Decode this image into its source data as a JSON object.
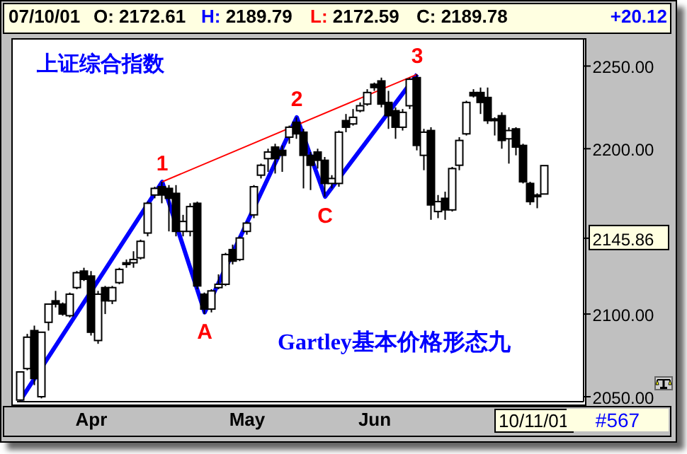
{
  "chart_data": {
    "type": "candlestick",
    "title": "上证综合指数",
    "categories": [
      null,
      null,
      null,
      null,
      null,
      null,
      null,
      null,
      null,
      null,
      "Apr",
      null,
      null,
      null,
      null,
      null,
      null,
      null,
      null,
      null,
      null,
      null,
      null,
      null,
      null,
      null,
      null,
      null,
      null,
      null,
      null,
      null,
      "May",
      null,
      null,
      null,
      null,
      null,
      null,
      null,
      null,
      null,
      null,
      null,
      null,
      null,
      null,
      null,
      null,
      null,
      "Jun",
      null,
      null,
      null,
      null,
      null,
      null,
      null,
      null,
      null,
      null,
      null,
      null,
      null,
      null,
      null,
      null,
      null,
      null,
      null,
      null,
      null,
      null,
      null,
      null
    ],
    "ohlc": [
      [
        2048,
        2065,
        2047,
        2065
      ],
      [
        2067,
        2088,
        2066,
        2086
      ],
      [
        2090,
        2093,
        2057,
        2061
      ],
      [
        2050,
        2089,
        2049,
        2089
      ],
      [
        2095,
        2106,
        2090,
        2106
      ],
      [
        2108,
        2114,
        2104,
        2106
      ],
      [
        2106,
        2107,
        2099,
        2100
      ],
      [
        2099,
        2113,
        2098,
        2112
      ],
      [
        2116,
        2126,
        2115,
        2125
      ],
      [
        2126,
        2128,
        2120,
        2121
      ],
      [
        2123,
        2126,
        2087,
        2089
      ],
      [
        2084,
        2114,
        2082,
        2112
      ],
      [
        2116,
        2117,
        2100,
        2108
      ],
      [
        2108,
        2117,
        2106,
        2116
      ],
      [
        2119,
        2128,
        2118,
        2127
      ],
      [
        2131,
        2133,
        2128,
        2130
      ],
      [
        2131,
        2138,
        2128,
        2133
      ],
      [
        2134,
        2145,
        2133,
        2144
      ],
      [
        2149,
        2168,
        2147,
        2167
      ],
      [
        2172,
        2177,
        2170,
        2176
      ],
      [
        2177,
        2180,
        2167,
        2172
      ],
      [
        2176,
        2178,
        2150,
        2170
      ],
      [
        2173,
        2178,
        2147,
        2150
      ],
      [
        2150,
        2160,
        2147,
        2156
      ],
      [
        2150,
        2167,
        2147,
        2165
      ],
      [
        2167,
        2168,
        2115,
        2117
      ],
      [
        2112,
        2113,
        2100,
        2103
      ],
      [
        2103,
        2115,
        2101,
        2114
      ],
      [
        2116,
        2124,
        2115,
        2118
      ],
      [
        2118,
        2137,
        2117,
        2136
      ],
      [
        2139,
        2142,
        2130,
        2132
      ],
      [
        2133,
        2147,
        2132,
        2146
      ],
      [
        2150,
        2156,
        2148,
        2155
      ],
      [
        2160,
        2178,
        2158,
        2177
      ],
      [
        2184,
        2191,
        2182,
        2190
      ],
      [
        2194,
        2200,
        2186,
        2198
      ],
      [
        2201,
        2203,
        2185,
        2194
      ],
      [
        2199,
        2202,
        2186,
        2196
      ],
      [
        2207,
        2214,
        2203,
        2213
      ],
      [
        2216,
        2219,
        2206,
        2209
      ],
      [
        2210,
        2212,
        2176,
        2196
      ],
      [
        2196,
        2198,
        2175,
        2190
      ],
      [
        2198,
        2200,
        2188,
        2193
      ],
      [
        2193,
        2195,
        2171,
        2179
      ],
      [
        2179,
        2184,
        2176,
        2182
      ],
      [
        2179,
        2211,
        2177,
        2210
      ],
      [
        2217,
        2221,
        2210,
        2213
      ],
      [
        2215,
        2224,
        2214,
        2219
      ],
      [
        2223,
        2228,
        2222,
        2226
      ],
      [
        2227,
        2236,
        2226,
        2234
      ],
      [
        2239,
        2240,
        2235,
        2237
      ],
      [
        2241,
        2243,
        2225,
        2227
      ],
      [
        2228,
        2235,
        2212,
        2220
      ],
      [
        2223,
        2225,
        2206,
        2213
      ],
      [
        2213,
        2224,
        2211,
        2222
      ],
      [
        2226,
        2243,
        2224,
        2242
      ],
      [
        2243,
        2245,
        2199,
        2202
      ],
      [
        2196,
        2212,
        2187,
        2210
      ],
      [
        2211,
        2213,
        2157,
        2166
      ],
      [
        2162,
        2172,
        2158,
        2168
      ],
      [
        2170,
        2174,
        2157,
        2163
      ],
      [
        2163,
        2189,
        2162,
        2188
      ],
      [
        2190,
        2207,
        2187,
        2205
      ],
      [
        2209,
        2229,
        2208,
        2228
      ],
      [
        2234,
        2236,
        2231,
        2232
      ],
      [
        2234,
        2237,
        2221,
        2228
      ],
      [
        2231,
        2237,
        2215,
        2217
      ],
      [
        2218,
        2219,
        2208,
        2217
      ],
      [
        2220,
        2222,
        2200,
        2205
      ],
      [
        2206,
        2213,
        2191,
        2211
      ],
      [
        2212,
        2213,
        2196,
        2201
      ],
      [
        2202,
        2203,
        2179,
        2180
      ],
      [
        2179,
        2180,
        2166,
        2168
      ],
      [
        2172,
        2173,
        2164,
        2171
      ],
      [
        2172.61,
        2189.79,
        2172.59,
        2189.78
      ]
    ],
    "color": "#000000",
    "series": [
      {
        "type": "line",
        "color": "#0000ff",
        "values": [
          2048,
          null,
          null,
          null,
          null,
          null,
          null,
          null,
          null,
          null,
          null,
          null,
          null,
          null,
          null,
          null,
          null,
          null,
          null,
          null,
          2180,
          null,
          null,
          null,
          null,
          null,
          2101,
          null,
          null,
          null,
          null,
          null,
          null,
          null,
          null,
          null,
          null,
          null,
          null,
          2219,
          null,
          null,
          null,
          2171,
          null,
          null,
          null,
          null,
          null,
          null,
          null,
          null,
          null,
          null,
          null,
          null,
          2245,
          null,
          null,
          null,
          null,
          null,
          null,
          null,
          null,
          null,
          null,
          null,
          null,
          null,
          null,
          null,
          null,
          null,
          null
        ]
      },
      {
        "type": "line",
        "color": "#ff0000",
        "values": [
          null,
          null,
          null,
          null,
          null,
          null,
          null,
          null,
          null,
          null,
          null,
          null,
          null,
          null,
          null,
          null,
          null,
          null,
          null,
          null,
          2180,
          null,
          null,
          null,
          null,
          null,
          null,
          null,
          null,
          null,
          null,
          null,
          null,
          null,
          null,
          null,
          null,
          null,
          null,
          null,
          null,
          null,
          null,
          null,
          null,
          null,
          null,
          null,
          null,
          null,
          null,
          null,
          null,
          null,
          null,
          null,
          2245,
          null,
          null,
          null,
          null,
          null,
          null,
          null,
          null,
          null,
          null,
          null,
          null,
          null,
          null,
          null,
          null,
          null,
          null
        ]
      }
    ],
    "ylim": [
      2047,
      2266
    ],
    "yticks": [
      {
        "value": 2050,
        "label": "2050.00"
      },
      {
        "value": 2100,
        "label": "2100.00"
      },
      {
        "value": 2145.86,
        "label": "2145.86"
      },
      {
        "value": 2200,
        "label": "2200.00"
      },
      {
        "value": 2250,
        "label": "2250.00"
      }
    ],
    "annotations": [
      "07/10/01",
      "O: 2172.61",
      "H: 2189.79",
      "L: 2172.59",
      "C: 2189.78",
      "+20.12",
      "Gartley基本价格形态九",
      "10/11/01",
      "#567",
      {
        "text": "1",
        "y": 2180
      },
      {
        "text": "A",
        "y": 2101
      },
      {
        "text": "2",
        "y": 2219
      },
      {
        "text": "C",
        "y": 2171
      },
      {
        "text": "3",
        "y": 2245
      }
    ]
  }
}
